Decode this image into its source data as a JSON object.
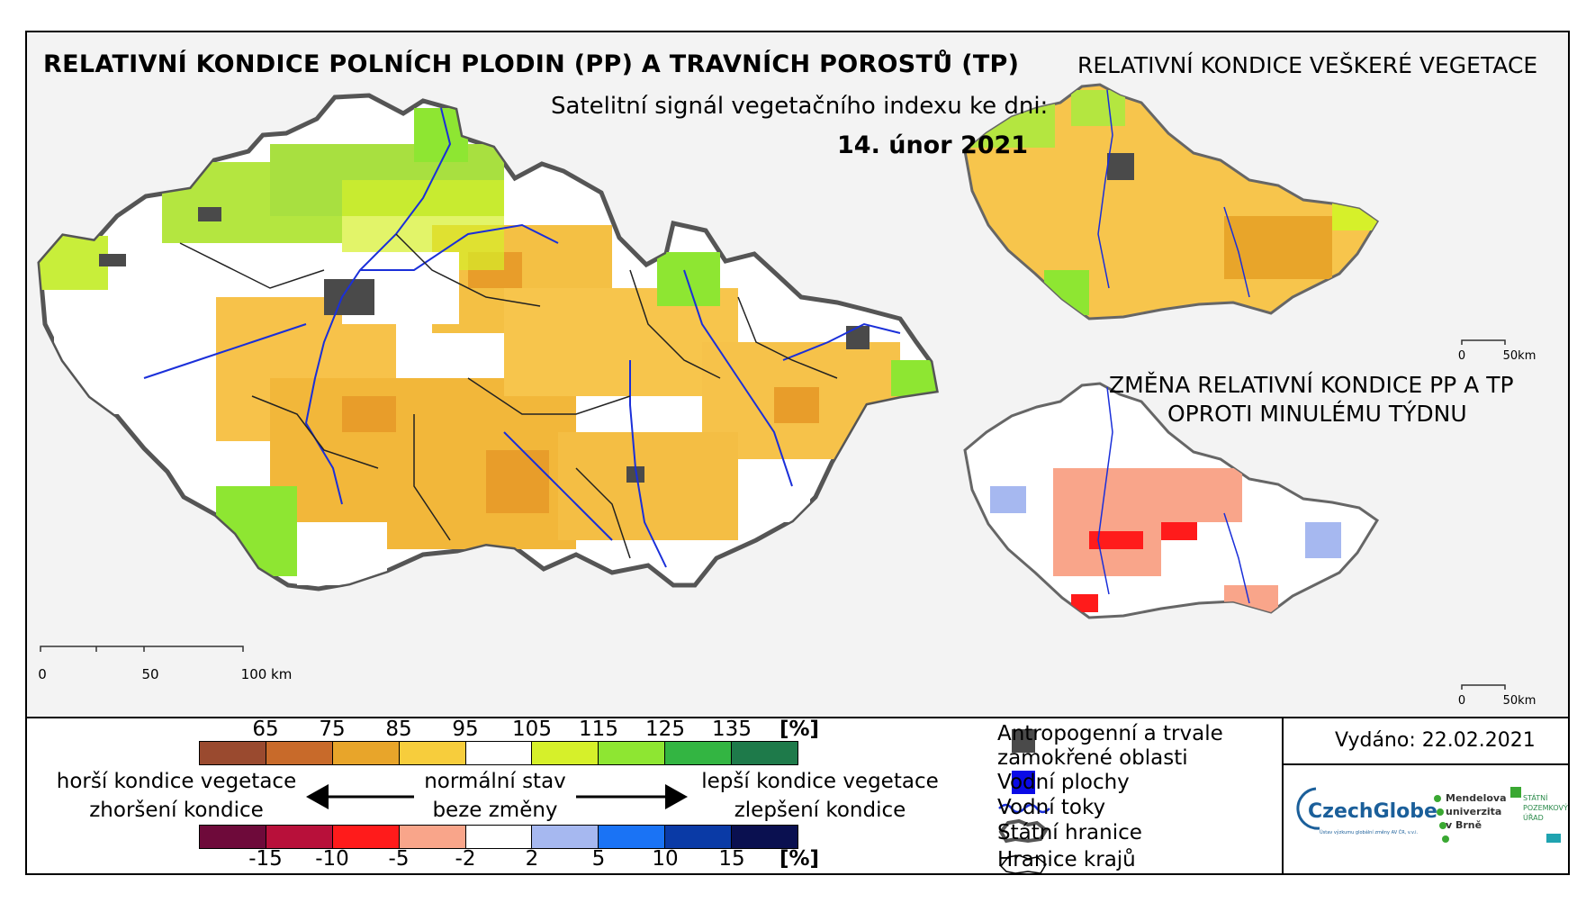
{
  "titles": {
    "main": "RELATIVNÍ KONDICE POLNÍCH PLODIN (PP) A TRAVNÍCH POROSTŮ (TP)",
    "subtitle": "Satelitní signál vegetačního indexu ke dni:",
    "date": "14. únor 2021",
    "right_top": "RELATIVNÍ KONDICE VEŠKERÉ VEGETACE",
    "right_bottom_line1": "ZMĚNA RELATIVNÍ KONDICE PP A TP",
    "right_bottom_line2": "OPROTI MINULÉMU TÝDNU"
  },
  "scales": {
    "main": [
      "0",
      "50",
      "100 km"
    ],
    "small_top": [
      "0",
      "50km"
    ],
    "small_bottom": [
      "0",
      "50km"
    ]
  },
  "condition_legend": {
    "ticks": [
      "65",
      "75",
      "85",
      "95",
      "105",
      "115",
      "125",
      "135"
    ],
    "unit": "[%]",
    "colors": [
      "#9a4a2f",
      "#c86a2a",
      "#e8a52a",
      "#f7cd3c",
      "#ffffff",
      "#d6f02a",
      "#8ee632",
      "#33b542",
      "#1e7a4a"
    ]
  },
  "change_legend": {
    "ticks": [
      "-15",
      "-10",
      "-5",
      "-2",
      "2",
      "5",
      "10",
      "15"
    ],
    "unit": "[%]",
    "colors": [
      "#6e0a3a",
      "#b8103a",
      "#ff1b1b",
      "#f9a58a",
      "#ffffff",
      "#a6b8f0",
      "#1a73f5",
      "#0a3aa6",
      "#0a1050"
    ]
  },
  "arrows": {
    "left_top": "horší kondice vegetace",
    "left_bottom": "zhoršení kondice",
    "center_top": "normální stav",
    "center_bottom": "beze změny",
    "right_top": "lepší kondice vegetace",
    "right_bottom": "zlepšení kondice"
  },
  "symbols": {
    "anthro_line1": "Antropogenní a trvale",
    "anthro_line2": "zamokřené oblasti",
    "water_bodies": "Vodní plochy",
    "rivers": "Vodní toky",
    "state_border": "Státní hranice",
    "region_border": "Hranice krajů"
  },
  "issued": "Vydáno: 22.02.2021",
  "logos": {
    "czechglobe": "CzechGlobe",
    "czechglobe_sub": "Ústav výzkumu globální změny AV ČR, v.v.i.",
    "mendelu_line1": "Mendelova",
    "mendelu_line2": "univerzita",
    "mendelu_line3": "v Brně",
    "spu_line1": "STÁTNÍ",
    "spu_line2": "POZEMKOVÝ",
    "spu_line3": "ÚŘAD"
  }
}
